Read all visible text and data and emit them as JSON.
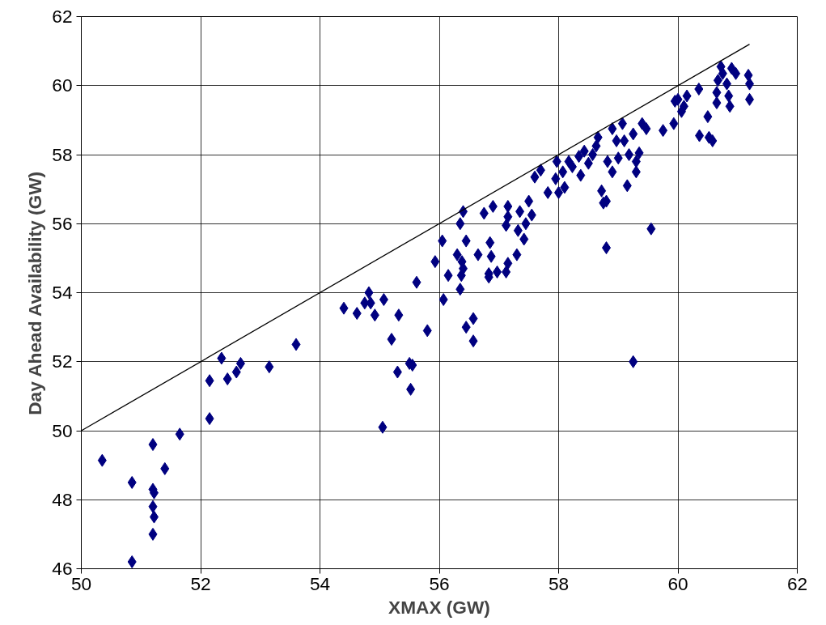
{
  "chart_data": {
    "type": "scatter",
    "xlabel": "XMAX (GW)",
    "ylabel": "Day Ahead Availability (GW)",
    "xlim": [
      50,
      62
    ],
    "ylim": [
      46,
      62
    ],
    "xticks": [
      50,
      52,
      54,
      56,
      58,
      60,
      62
    ],
    "yticks": [
      46,
      48,
      50,
      52,
      54,
      56,
      58,
      60,
      62
    ],
    "grid": true,
    "series": [
      {
        "marker": "diamond",
        "color": "#000080",
        "x": [
          50.35,
          50.85,
          50.85,
          51.2,
          51.2,
          51.22,
          51.2,
          51.22,
          51.2,
          51.4,
          51.65,
          52.15,
          52.15,
          52.35,
          52.45,
          52.6,
          52.67,
          53.15,
          53.6,
          54.4,
          54.62,
          54.75,
          54.82,
          54.85,
          54.92,
          55.07,
          55.05,
          55.2,
          55.3,
          55.32,
          55.5,
          55.52,
          55.55,
          55.62,
          55.8,
          55.93,
          56.07,
          56.05,
          56.15,
          56.3,
          56.35,
          56.37,
          56.38,
          56.4,
          56.35,
          56.4,
          56.45,
          56.45,
          56.57,
          56.57,
          56.65,
          56.75,
          56.83,
          56.83,
          56.87,
          56.85,
          56.9,
          56.97,
          57.12,
          57.15,
          57.15,
          57.12,
          57.15,
          57.3,
          57.32,
          57.35,
          57.42,
          57.45,
          57.5,
          57.55,
          57.6,
          57.7,
          57.82,
          57.95,
          57.97,
          58.0,
          58.07,
          58.1,
          58.17,
          58.23,
          58.34,
          58.37,
          58.43,
          58.5,
          58.57,
          58.63,
          58.66,
          58.72,
          58.75,
          58.8,
          58.8,
          58.82,
          58.9,
          58.9,
          58.97,
          59.0,
          59.07,
          59.1,
          59.18,
          59.25,
          59.3,
          59.3,
          59.35,
          59.15,
          59.25,
          59.55,
          59.4,
          59.47,
          59.75,
          59.93,
          59.95,
          60.0,
          60.06,
          60.1,
          60.15,
          60.35,
          60.36,
          60.5,
          60.52,
          60.58,
          60.65,
          60.65,
          60.67,
          60.72,
          60.75,
          60.82,
          60.85,
          60.87,
          60.9,
          60.97,
          61.18,
          61.2,
          61.2
        ],
        "values": [
          49.14,
          48.5,
          46.2,
          49.6,
          48.3,
          48.2,
          47.8,
          47.5,
          47.0,
          48.9,
          49.9,
          50.35,
          51.45,
          52.1,
          51.5,
          51.7,
          51.95,
          51.85,
          52.5,
          53.55,
          53.4,
          53.7,
          54.0,
          53.7,
          53.35,
          53.8,
          50.1,
          52.65,
          51.7,
          53.35,
          51.95,
          51.2,
          51.9,
          54.3,
          52.9,
          54.9,
          53.8,
          55.5,
          54.5,
          55.1,
          54.1,
          54.5,
          54.9,
          54.7,
          56.0,
          56.35,
          55.5,
          53.0,
          52.6,
          53.25,
          55.1,
          56.3,
          54.55,
          54.45,
          55.05,
          55.45,
          56.5,
          54.6,
          54.6,
          56.5,
          56.2,
          55.95,
          54.85,
          55.1,
          55.8,
          56.35,
          55.55,
          56.0,
          56.65,
          56.25,
          57.35,
          57.55,
          56.9,
          57.3,
          57.8,
          56.9,
          57.5,
          57.05,
          57.8,
          57.65,
          57.95,
          57.4,
          58.1,
          57.75,
          58.0,
          58.25,
          58.5,
          56.95,
          56.6,
          56.65,
          55.3,
          57.8,
          57.5,
          58.75,
          58.4,
          57.9,
          58.9,
          58.4,
          58.0,
          58.6,
          57.5,
          57.8,
          58.05,
          57.1,
          52.0,
          55.85,
          58.9,
          58.75,
          58.7,
          58.9,
          59.55,
          59.6,
          59.25,
          59.4,
          59.7,
          59.9,
          58.55,
          59.1,
          58.5,
          58.4,
          59.5,
          59.8,
          60.15,
          60.55,
          60.35,
          60.05,
          59.7,
          59.4,
          60.5,
          60.35,
          60.3,
          60.05,
          59.6
        ]
      },
      {
        "type": "line",
        "color": "#000000",
        "x": [
          50,
          61.2
        ],
        "values": [
          50,
          61.2
        ]
      }
    ]
  }
}
